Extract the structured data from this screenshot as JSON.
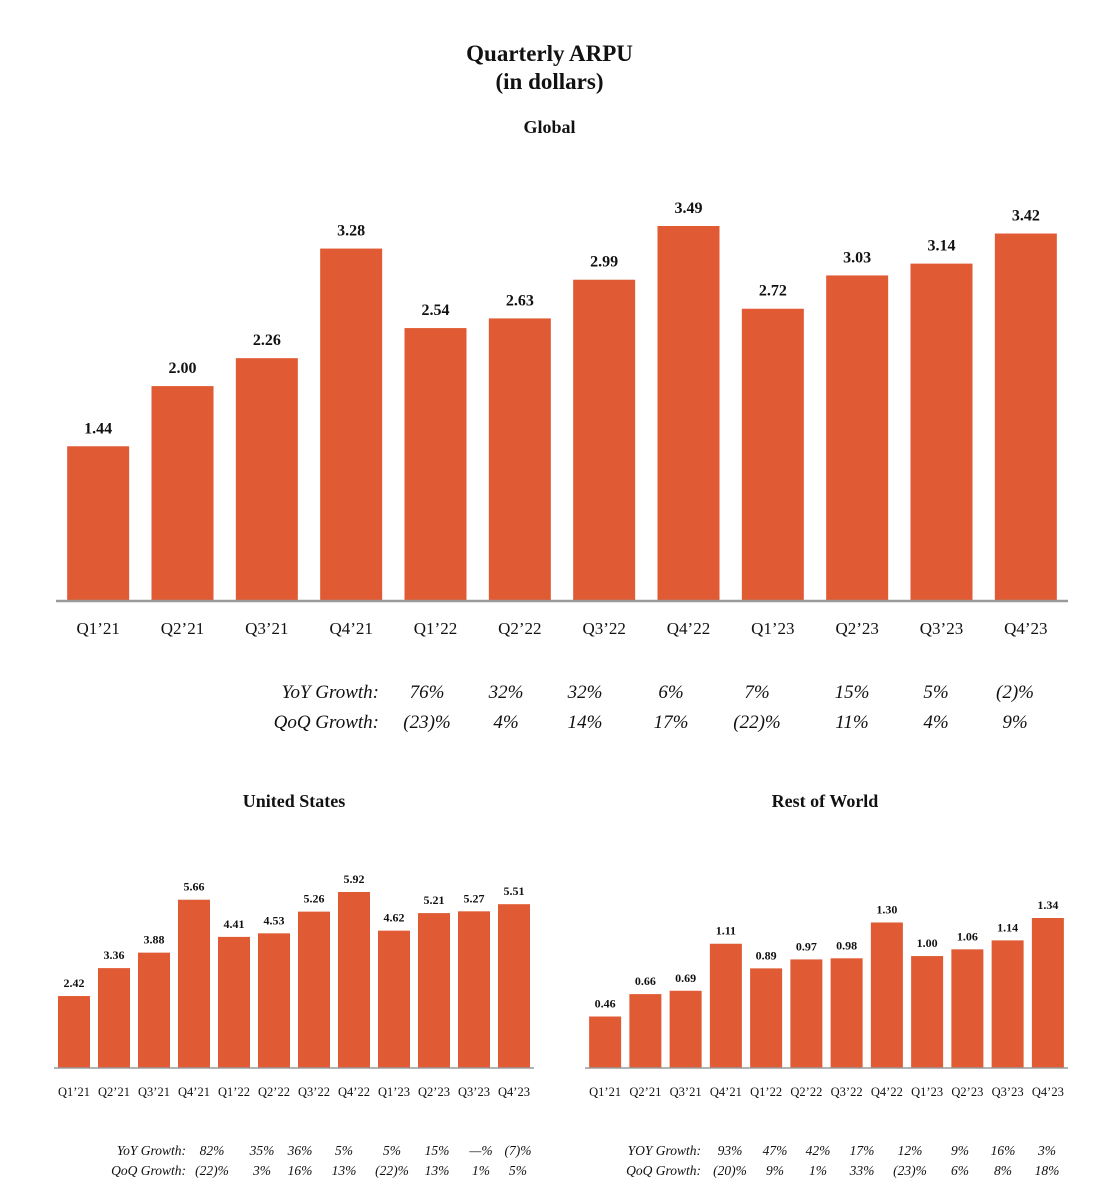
{
  "title_line1": "Quarterly ARPU",
  "title_line2": "(in dollars)",
  "chart_data": [
    {
      "type": "bar",
      "title": "Global",
      "categories": [
        "Q1’21",
        "Q2’21",
        "Q3’21",
        "Q4’21",
        "Q1’22",
        "Q2’22",
        "Q3’22",
        "Q4’22",
        "Q1’23",
        "Q2’23",
        "Q3’23",
        "Q4’23"
      ],
      "values": [
        1.44,
        2.0,
        2.26,
        3.28,
        2.54,
        2.63,
        2.99,
        3.49,
        2.72,
        3.03,
        3.14,
        3.42
      ],
      "value_labels": [
        "1.44",
        "2.00",
        "2.26",
        "3.28",
        "2.54",
        "2.63",
        "2.99",
        "3.49",
        "2.72",
        "3.03",
        "3.14",
        "3.42"
      ],
      "bar_color": "#E05A33",
      "ylim": [
        0,
        3.5
      ],
      "growth": {
        "yoy_label": "YoY Growth:",
        "qoq_label": "QoQ Growth:",
        "yoy": [
          "76%",
          "32%",
          "32%",
          "6%",
          "7%",
          "15%",
          "5%",
          "(2)%"
        ],
        "qoq": [
          "(23)%",
          "4%",
          "14%",
          "17%",
          "(22)%",
          "11%",
          "4%",
          "9%"
        ]
      }
    },
    {
      "type": "bar",
      "title": "United States",
      "categories": [
        "Q1’21",
        "Q2’21",
        "Q3’21",
        "Q4’21",
        "Q1’22",
        "Q2’22",
        "Q3’22",
        "Q4’22",
        "Q1’23",
        "Q2’23",
        "Q3’23",
        "Q4’23"
      ],
      "values": [
        2.42,
        3.36,
        3.88,
        5.66,
        4.41,
        4.53,
        5.26,
        5.92,
        4.62,
        5.21,
        5.27,
        5.51
      ],
      "value_labels": [
        "2.42",
        "3.36",
        "3.88",
        "5.66",
        "4.41",
        "4.53",
        "5.26",
        "5.92",
        "4.62",
        "5.21",
        "5.27",
        "5.51"
      ],
      "bar_color": "#E05A33",
      "ylim": [
        0,
        6.2
      ],
      "growth": {
        "yoy_label": "YoY Growth:",
        "qoq_label": "QoQ Growth:",
        "yoy": [
          "82%",
          "35%",
          "36%",
          "5%",
          "5%",
          "15%",
          "—%",
          "(7)%"
        ],
        "qoq": [
          "(22)%",
          "3%",
          "16%",
          "13%",
          "(22)%",
          "13%",
          "1%",
          "5%"
        ]
      }
    },
    {
      "type": "bar",
      "title": "Rest of World",
      "categories": [
        "Q1’21",
        "Q2’21",
        "Q3’21",
        "Q4’21",
        "Q1’22",
        "Q2’22",
        "Q3’22",
        "Q4’22",
        "Q1’23",
        "Q2’23",
        "Q3’23",
        "Q4’23"
      ],
      "values": [
        0.46,
        0.66,
        0.69,
        1.11,
        0.89,
        0.97,
        0.98,
        1.3,
        1.0,
        1.06,
        1.14,
        1.34
      ],
      "value_labels": [
        "0.46",
        "0.66",
        "0.69",
        "1.11",
        "0.89",
        "0.97",
        "0.98",
        "1.30",
        "1.00",
        "1.06",
        "1.14",
        "1.34"
      ],
      "bar_color": "#E05A33",
      "ylim": [
        0,
        2.8
      ],
      "growth": {
        "yoy_label": "YOY Growth:",
        "qoq_label": "QoQ Growth:",
        "yoy": [
          "93%",
          "47%",
          "42%",
          "17%",
          "12%",
          "9%",
          "16%",
          "3%"
        ],
        "qoq": [
          "(20)%",
          "9%",
          "1%",
          "33%",
          "(23)%",
          "6%",
          "8%",
          "18%"
        ]
      }
    }
  ]
}
